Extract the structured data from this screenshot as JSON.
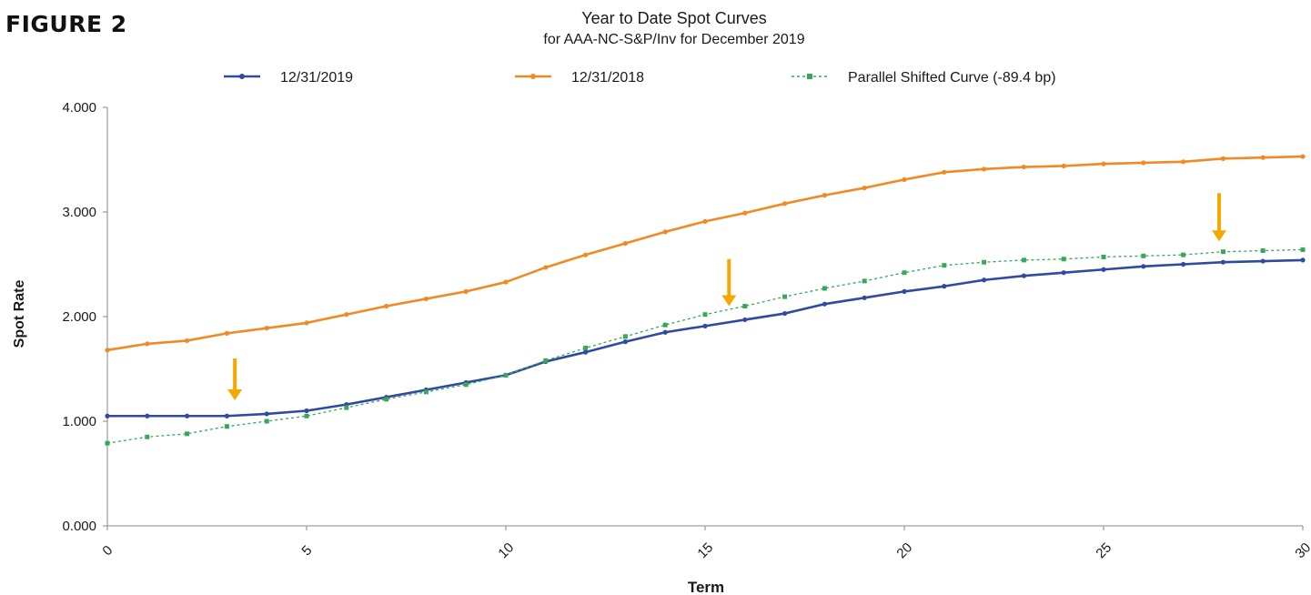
{
  "figure_label": "FIGURE 2",
  "chart_data": {
    "type": "line",
    "title": "Year to Date Spot Curves",
    "subtitle": "for AAA-NC-S&P/Inv for December 2019",
    "xlabel": "Term",
    "ylabel": "Spot Rate",
    "xlim": [
      0,
      30
    ],
    "ylim": [
      0,
      4
    ],
    "x_ticks": [
      "0",
      "5",
      "10",
      "15",
      "20",
      "25",
      "30"
    ],
    "y_ticks": [
      "0.000",
      "1.000",
      "2.000",
      "3.000",
      "4.000"
    ],
    "legend_position": "top",
    "grid": false,
    "x": [
      0,
      1,
      2,
      3,
      4,
      5,
      6,
      7,
      8,
      9,
      10,
      11,
      12,
      13,
      14,
      15,
      16,
      17,
      18,
      19,
      20,
      21,
      22,
      23,
      24,
      25,
      26,
      27,
      28,
      29,
      30
    ],
    "series": [
      {
        "name": "12/31/2019",
        "color": "#2f4aa0",
        "style": "solid",
        "values": [
          1.05,
          1.05,
          1.05,
          1.05,
          1.07,
          1.1,
          1.16,
          1.23,
          1.3,
          1.37,
          1.44,
          1.57,
          1.66,
          1.76,
          1.85,
          1.91,
          1.97,
          2.03,
          2.12,
          2.18,
          2.24,
          2.29,
          2.35,
          2.39,
          2.42,
          2.45,
          2.48,
          2.5,
          2.52,
          2.53,
          2.54
        ]
      },
      {
        "name": "12/31/2018",
        "color": "#f08a24",
        "style": "solid",
        "values": [
          1.68,
          1.74,
          1.77,
          1.84,
          1.89,
          1.94,
          2.02,
          2.1,
          2.17,
          2.24,
          2.33,
          2.47,
          2.59,
          2.7,
          2.81,
          2.91,
          2.99,
          3.08,
          3.16,
          3.23,
          3.31,
          3.38,
          3.41,
          3.43,
          3.44,
          3.46,
          3.47,
          3.48,
          3.51,
          3.52,
          3.53
        ]
      },
      {
        "name": "Parallel Shifted Curve (-89.4 bp)",
        "color": "#3aa657",
        "style": "dotted",
        "values": [
          0.79,
          0.85,
          0.88,
          0.95,
          1.0,
          1.05,
          1.13,
          1.21,
          1.28,
          1.35,
          1.44,
          1.58,
          1.7,
          1.81,
          1.92,
          2.02,
          2.1,
          2.19,
          2.27,
          2.34,
          2.42,
          2.49,
          2.52,
          2.54,
          2.55,
          2.57,
          2.58,
          2.59,
          2.62,
          2.63,
          2.64
        ]
      }
    ],
    "annotations": [
      {
        "type": "arrow-down",
        "color": "#f5a800",
        "x": 3.2,
        "y_top": 1.6,
        "y_bottom": 1.2
      },
      {
        "type": "arrow-down",
        "color": "#f5a800",
        "x": 15.6,
        "y_top": 2.55,
        "y_bottom": 2.1
      },
      {
        "type": "arrow-down",
        "color": "#f5a800",
        "x": 27.9,
        "y_top": 3.18,
        "y_bottom": 2.72
      }
    ]
  }
}
